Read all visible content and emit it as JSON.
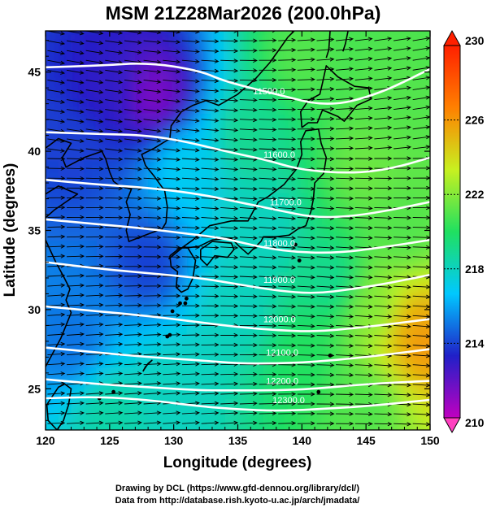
{
  "chart_data": {
    "type": "heatmap",
    "title": "MSM 21Z28Mar2026 (200.0hPa)",
    "xlabel": "Longitude (degrees)",
    "ylabel": "Latitude  (degrees)",
    "xlim": [
      120,
      150
    ],
    "ylim": [
      22.4,
      47.6
    ],
    "x_ticks": [
      "120",
      "125",
      "130",
      "135",
      "140",
      "145",
      "150"
    ],
    "y_ticks": [
      "25",
      "30",
      "35",
      "40",
      "45"
    ],
    "colorbar": {
      "min": 210,
      "max": 230,
      "ticks": [
        "210",
        "214",
        "218",
        "222",
        "226",
        "230"
      ],
      "colors": [
        "#c000c0",
        "#2020c8",
        "#00c8ff",
        "#20e060",
        "#c8f020",
        "#ff8000",
        "#ff2000"
      ]
    },
    "temperature_field": [
      {
        "lon": 128.5,
        "lat": 43.5,
        "value": 211.5
      },
      {
        "lon": 125,
        "lat": 44,
        "value": 213
      },
      {
        "lon": 122,
        "lat": 40,
        "value": 214
      },
      {
        "lon": 128,
        "lat": 33,
        "value": 214
      },
      {
        "lon": 122,
        "lat": 28,
        "value": 215
      },
      {
        "lon": 131,
        "lat": 39,
        "value": 217
      },
      {
        "lon": 136,
        "lat": 41,
        "value": 219
      },
      {
        "lon": 137,
        "lat": 35,
        "value": 218
      },
      {
        "lon": 140,
        "lat": 46,
        "value": 221
      },
      {
        "lon": 147,
        "lat": 44,
        "value": 221
      },
      {
        "lon": 145,
        "lat": 39,
        "value": 221.5
      },
      {
        "lon": 148,
        "lat": 35,
        "value": 221
      },
      {
        "lon": 146,
        "lat": 30,
        "value": 222
      },
      {
        "lon": 148.5,
        "lat": 29,
        "value": 225.5
      },
      {
        "lon": 149.5,
        "lat": 28,
        "value": 226
      },
      {
        "lon": 140,
        "lat": 27,
        "value": 220
      },
      {
        "lon": 130,
        "lat": 25,
        "value": 218
      },
      {
        "lon": 125,
        "lat": 23.5,
        "value": 218.5
      },
      {
        "lon": 145,
        "lat": 24,
        "value": 221
      },
      {
        "lon": 135,
        "lat": 30,
        "value": 218
      },
      {
        "lon": 142,
        "lat": 32,
        "value": 219
      }
    ],
    "contours": [
      {
        "label": "11500.0",
        "points": [
          [
            120,
            45.3
          ],
          [
            124,
            45.4
          ],
          [
            128,
            45.6
          ],
          [
            132,
            45.1
          ],
          [
            134,
            44.4
          ],
          [
            138,
            43.6
          ],
          [
            142,
            42.8
          ],
          [
            146,
            43.6
          ],
          [
            150,
            45.2
          ]
        ],
        "label_at": [
          136.2,
          43.6
        ]
      },
      {
        "label": "11600.0",
        "points": [
          [
            120,
            41.2
          ],
          [
            124,
            41.1
          ],
          [
            128,
            41.0
          ],
          [
            131,
            40.6
          ],
          [
            134,
            40.0
          ],
          [
            137,
            39.5
          ],
          [
            140,
            38.8
          ],
          [
            144,
            38.6
          ],
          [
            147,
            38.9
          ],
          [
            150,
            39.6
          ]
        ],
        "label_at": [
          137.0,
          39.6
        ]
      },
      {
        "label": "11700.0",
        "points": [
          [
            120,
            38.2
          ],
          [
            124,
            37.9
          ],
          [
            128,
            37.7
          ],
          [
            132,
            37.3
          ],
          [
            135,
            36.8
          ],
          [
            138,
            36.3
          ],
          [
            141,
            35.8
          ],
          [
            144,
            35.9
          ],
          [
            147,
            36.3
          ],
          [
            150,
            36.8
          ]
        ],
        "label_at": [
          137.5,
          36.6
        ]
      },
      {
        "label": "11800.0",
        "points": [
          [
            120,
            35.7
          ],
          [
            124,
            35.4
          ],
          [
            128,
            35.1
          ],
          [
            131,
            34.8
          ],
          [
            134,
            34.5
          ],
          [
            137,
            33.9
          ],
          [
            140,
            33.6
          ],
          [
            143,
            33.6
          ],
          [
            146,
            33.9
          ],
          [
            150,
            34.4
          ]
        ],
        "label_at": [
          137.0,
          34.0
        ]
      },
      {
        "label": "11900.0",
        "points": [
          [
            120,
            33.0
          ],
          [
            124,
            32.6
          ],
          [
            128,
            32.3
          ],
          [
            132,
            32.0
          ],
          [
            135,
            31.6
          ],
          [
            138,
            31.2
          ],
          [
            141,
            31.0
          ],
          [
            144,
            31.3
          ],
          [
            147,
            31.7
          ],
          [
            150,
            32.2
          ]
        ],
        "label_at": [
          137.0,
          31.7
        ]
      },
      {
        "label": "12000.0",
        "points": [
          [
            120,
            30.2
          ],
          [
            124,
            29.9
          ],
          [
            128,
            29.6
          ],
          [
            132,
            29.2
          ],
          [
            135,
            28.9
          ],
          [
            138,
            28.7
          ],
          [
            141,
            28.6
          ],
          [
            145,
            28.9
          ],
          [
            150,
            29.4
          ]
        ],
        "label_at": [
          137.0,
          29.2
        ]
      },
      {
        "label": "12100.0",
        "points": [
          [
            120,
            27.6
          ],
          [
            124,
            27.3
          ],
          [
            128,
            27.0
          ],
          [
            132,
            26.8
          ],
          [
            135,
            26.6
          ],
          [
            138,
            26.6
          ],
          [
            141,
            26.7
          ],
          [
            145,
            27.0
          ],
          [
            150,
            27.5
          ]
        ],
        "label_at": [
          137.2,
          27.1
        ]
      },
      {
        "label": "12200.0",
        "points": [
          [
            120,
            25.6
          ],
          [
            124,
            25.3
          ],
          [
            128,
            25.1
          ],
          [
            132,
            24.9
          ],
          [
            135,
            24.9
          ],
          [
            138,
            24.9
          ],
          [
            141,
            25.0
          ],
          [
            145,
            25.3
          ],
          [
            150,
            25.5
          ]
        ],
        "label_at": [
          137.2,
          25.3
        ]
      },
      {
        "label": "12300.0",
        "points": [
          [
            120,
            24.4
          ],
          [
            124,
            24.5
          ],
          [
            128,
            24.3
          ],
          [
            132,
            23.9
          ],
          [
            135,
            23.7
          ],
          [
            138,
            23.6
          ],
          [
            141,
            23.7
          ],
          [
            145,
            23.9
          ],
          [
            150,
            24.3
          ]
        ],
        "label_at": [
          137.7,
          24.1
        ]
      }
    ],
    "wind_flow": "westerly",
    "credits": [
      "Drawing by DCL (https://www.gfd-dennou.org/library/dcl/)",
      "Data from http://database.rish.kyoto-u.ac.jp/arch/jmadata/"
    ]
  }
}
